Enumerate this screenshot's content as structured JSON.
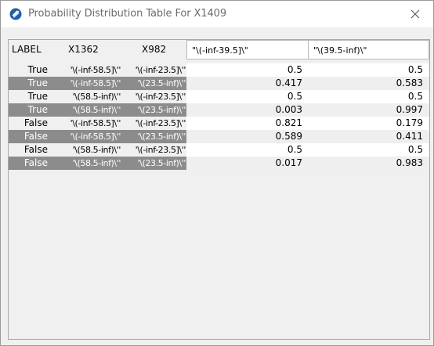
{
  "window": {
    "title": "Probability Distribution Table For X1409",
    "icon": "app-logo-icon",
    "close_icon": "close-icon"
  },
  "table": {
    "headers": [
      "LABEL",
      "X1362",
      "X982",
      "\"\\(-inf-39.5]\\\"",
      "\"\\(39.5-inf)\\\""
    ],
    "rows": [
      {
        "label": "True",
        "x1362": "'\\(-inf-58.5]\\''",
        "x982": "'\\(-inf-23.5]\\''",
        "p1": "0.5",
        "p2": "0.5"
      },
      {
        "label": "True",
        "x1362": "'\\(-inf-58.5]\\''",
        "x982": "'\\(23.5-inf)\\''",
        "p1": "0.417",
        "p2": "0.583"
      },
      {
        "label": "True",
        "x1362": "'\\(58.5-inf)\\''",
        "x982": "'\\(-inf-23.5]\\''",
        "p1": "0.5",
        "p2": "0.5"
      },
      {
        "label": "True",
        "x1362": "'\\(58.5-inf)\\''",
        "x982": "'\\(23.5-inf)\\''",
        "p1": "0.003",
        "p2": "0.997"
      },
      {
        "label": "False",
        "x1362": "'\\(-inf-58.5]\\''",
        "x982": "'\\(-inf-23.5]\\''",
        "p1": "0.821",
        "p2": "0.179"
      },
      {
        "label": "False",
        "x1362": "'\\(-inf-58.5]\\''",
        "x982": "'\\(23.5-inf)\\''",
        "p1": "0.589",
        "p2": "0.411"
      },
      {
        "label": "False",
        "x1362": "'\\(58.5-inf)\\''",
        "x982": "'\\(-inf-23.5]\\''",
        "p1": "0.5",
        "p2": "0.5"
      },
      {
        "label": "False",
        "x1362": "'\\(58.5-inf)\\''",
        "x982": "'\\(23.5-inf)\\''",
        "p1": "0.017",
        "p2": "0.983"
      }
    ]
  }
}
